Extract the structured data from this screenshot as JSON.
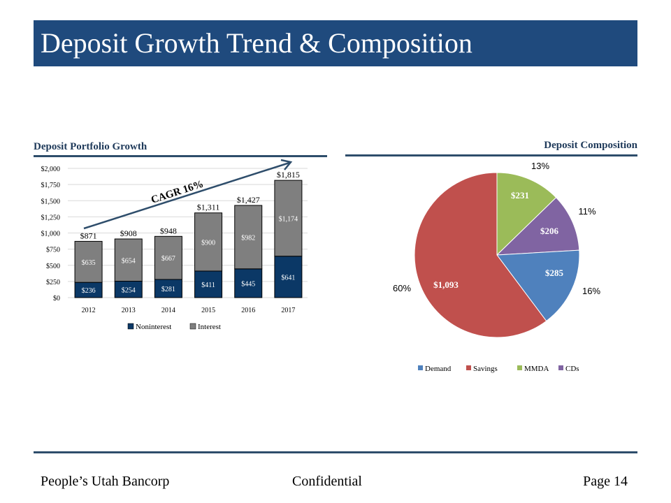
{
  "header": {
    "title": "Deposit Growth Trend & Composition"
  },
  "footer": {
    "left": "People’s Utah Bancorp",
    "center": "Confidential",
    "right": "Page 14"
  },
  "colors": {
    "brand": "#1f4a7d",
    "noninterest": "#0b3866",
    "interest": "#7f7f7f",
    "demand": "#4f81bd",
    "savings": "#c0504d",
    "mmda": "#9bbb59",
    "cds": "#8064a2"
  },
  "chart_data": [
    {
      "type": "bar",
      "stacked": true,
      "title": "Deposit Portfolio Growth",
      "categories": [
        "2012",
        "2013",
        "2014",
        "2015",
        "2016",
        "2017"
      ],
      "series": [
        {
          "name": "Noninterest",
          "values": [
            236,
            254,
            281,
            411,
            445,
            641
          ],
          "labels": [
            "$236",
            "$254",
            "$281",
            "$411",
            "$445",
            "$641"
          ]
        },
        {
          "name": "Interest",
          "values": [
            635,
            654,
            667,
            900,
            982,
            1174
          ],
          "labels": [
            "$635",
            "$654",
            "$667",
            "$900",
            "$982",
            "$1,174"
          ]
        }
      ],
      "totals": [
        871,
        908,
        948,
        1311,
        1427,
        1815
      ],
      "total_labels": [
        "$871",
        "$908",
        "$948",
        "$1,311",
        "$1,427",
        "$1,815"
      ],
      "ylim": [
        0,
        2000
      ],
      "yticks": [
        0,
        250,
        500,
        750,
        1000,
        1250,
        1500,
        1750,
        2000
      ],
      "ytick_labels": [
        "$0",
        "$250",
        "$500",
        "$750",
        "$1,000",
        "$1,250",
        "$1,500",
        "$1,750",
        "$2,000"
      ],
      "grid": true,
      "legend": "bottom",
      "annotation": "CAGR 16%"
    },
    {
      "type": "pie",
      "title": "Deposit Composition",
      "labels": [
        "Demand",
        "Savings",
        "MMDA",
        "CDs"
      ],
      "values": [
        285,
        1093,
        231,
        206
      ],
      "value_labels": [
        "$285",
        "$1,093",
        "$231",
        "$206"
      ],
      "percent_labels": [
        "16%",
        "60%",
        "13%",
        "11%"
      ],
      "legend": "bottom"
    }
  ]
}
